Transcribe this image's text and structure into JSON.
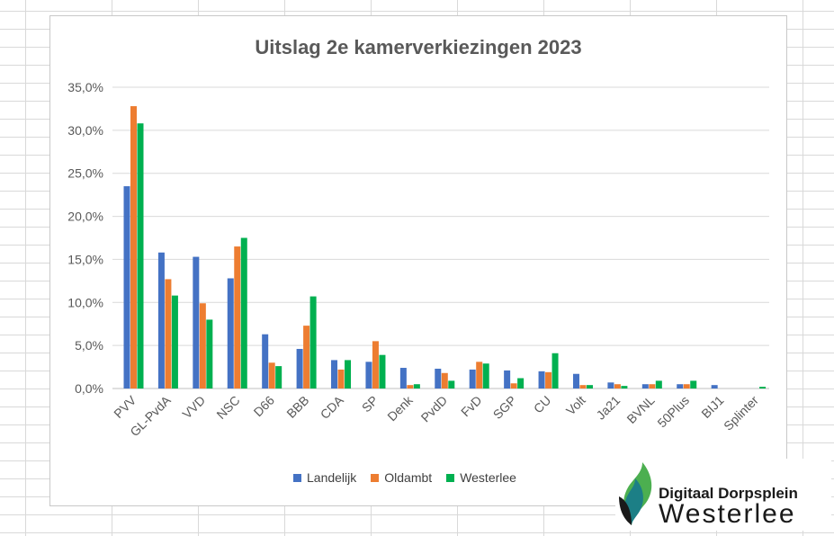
{
  "chart_data": {
    "type": "bar",
    "title": "Uitslag 2e kamerverkiezingen 2023",
    "categories": [
      "PVV",
      "GL-PvdA",
      "VVD",
      "NSC",
      "D66",
      "BBB",
      "CDA",
      "SP",
      "Denk",
      "PvdD",
      "FvD",
      "SGP",
      "CU",
      "Volt",
      "Ja21",
      "BVNL",
      "50Plus",
      "BIJ1",
      "Splinter"
    ],
    "y_tick_labels": [
      "0,0%",
      "5,0%",
      "10,0%",
      "15,0%",
      "20,0%",
      "25,0%",
      "30,0%",
      "35,0%"
    ],
    "ylim": [
      0,
      35
    ],
    "grid": true,
    "legend_position": "bottom",
    "series": [
      {
        "name": "Landelijk",
        "color": "#4472c4",
        "values": [
          23.5,
          15.8,
          15.3,
          12.8,
          6.3,
          4.6,
          3.3,
          3.1,
          2.4,
          2.3,
          2.2,
          2.1,
          2.0,
          1.7,
          0.7,
          0.5,
          0.5,
          0.4,
          0.0
        ]
      },
      {
        "name": "Oldambt",
        "color": "#ed7d31",
        "values": [
          32.8,
          12.7,
          9.9,
          16.5,
          3.0,
          7.3,
          2.2,
          5.5,
          0.4,
          1.8,
          3.1,
          0.6,
          1.9,
          0.4,
          0.5,
          0.5,
          0.5,
          0.0,
          0.0
        ]
      },
      {
        "name": "Westerlee",
        "color": "#00b050",
        "values": [
          30.8,
          10.8,
          8.0,
          17.5,
          2.6,
          10.7,
          3.3,
          3.9,
          0.5,
          0.9,
          2.9,
          1.2,
          4.1,
          0.4,
          0.3,
          0.9,
          0.9,
          0.0,
          0.2
        ]
      }
    ]
  },
  "brand": {
    "line1": "Digitaal Dorpsplein",
    "line2": "Westerlee",
    "colors": {
      "green": "#4caf50",
      "teal": "#1c7f86",
      "dark": "#1a1a1a"
    }
  }
}
